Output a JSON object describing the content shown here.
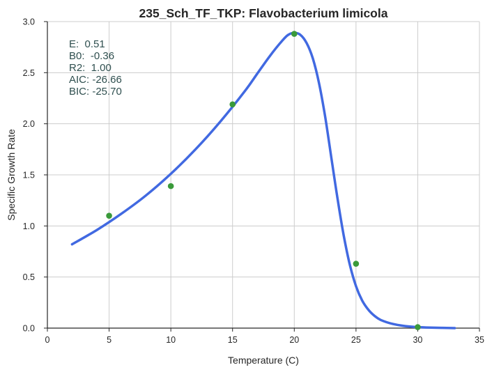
{
  "chart_data": {
    "type": "line",
    "title": "235_Sch_TF_TKP: Flavobacterium limicola",
    "xlabel": "Temperature (C)",
    "ylabel": "Specific Growth Rate",
    "xlim": [
      0,
      35
    ],
    "ylim": [
      0,
      3.0
    ],
    "xticks": [
      "0",
      "5",
      "10",
      "15",
      "20",
      "25",
      "30",
      "35"
    ],
    "yticks": [
      "0.0",
      "0.5",
      "1.0",
      "1.5",
      "2.0",
      "2.5",
      "3.0"
    ],
    "grid": true,
    "colors": {
      "curve": "#4169E1",
      "points": "#3A9A3A",
      "annotation": "#2F4F4F",
      "grid": "#CCCCCC",
      "axis": "#262626"
    },
    "annotations": [
      "E:  0.51",
      "B0:  -0.36",
      "R2:  1.00",
      "AIC: -26.66",
      "BIC: -25.70"
    ],
    "series": [
      {
        "kind": "scatter",
        "x": [
          5,
          10,
          15,
          20,
          25,
          30
        ],
        "y": [
          1.1,
          1.39,
          2.19,
          2.88,
          0.63,
          0.01
        ]
      },
      {
        "kind": "line",
        "x": [
          2,
          4,
          6,
          8,
          10,
          12,
          14,
          16,
          17,
          18,
          19,
          19.5,
          20,
          20.5,
          21,
          21.5,
          22,
          22.5,
          23,
          23.5,
          24,
          24.5,
          25,
          25.5,
          26,
          26.5,
          27,
          28,
          29,
          30,
          31,
          33
        ],
        "y": [
          0.82,
          0.96,
          1.12,
          1.3,
          1.51,
          1.75,
          2.02,
          2.32,
          2.49,
          2.66,
          2.81,
          2.87,
          2.89,
          2.87,
          2.79,
          2.64,
          2.4,
          2.07,
          1.67,
          1.27,
          0.91,
          0.62,
          0.41,
          0.27,
          0.18,
          0.12,
          0.08,
          0.04,
          0.02,
          0.01,
          0.005,
          0.0
        ]
      }
    ]
  }
}
